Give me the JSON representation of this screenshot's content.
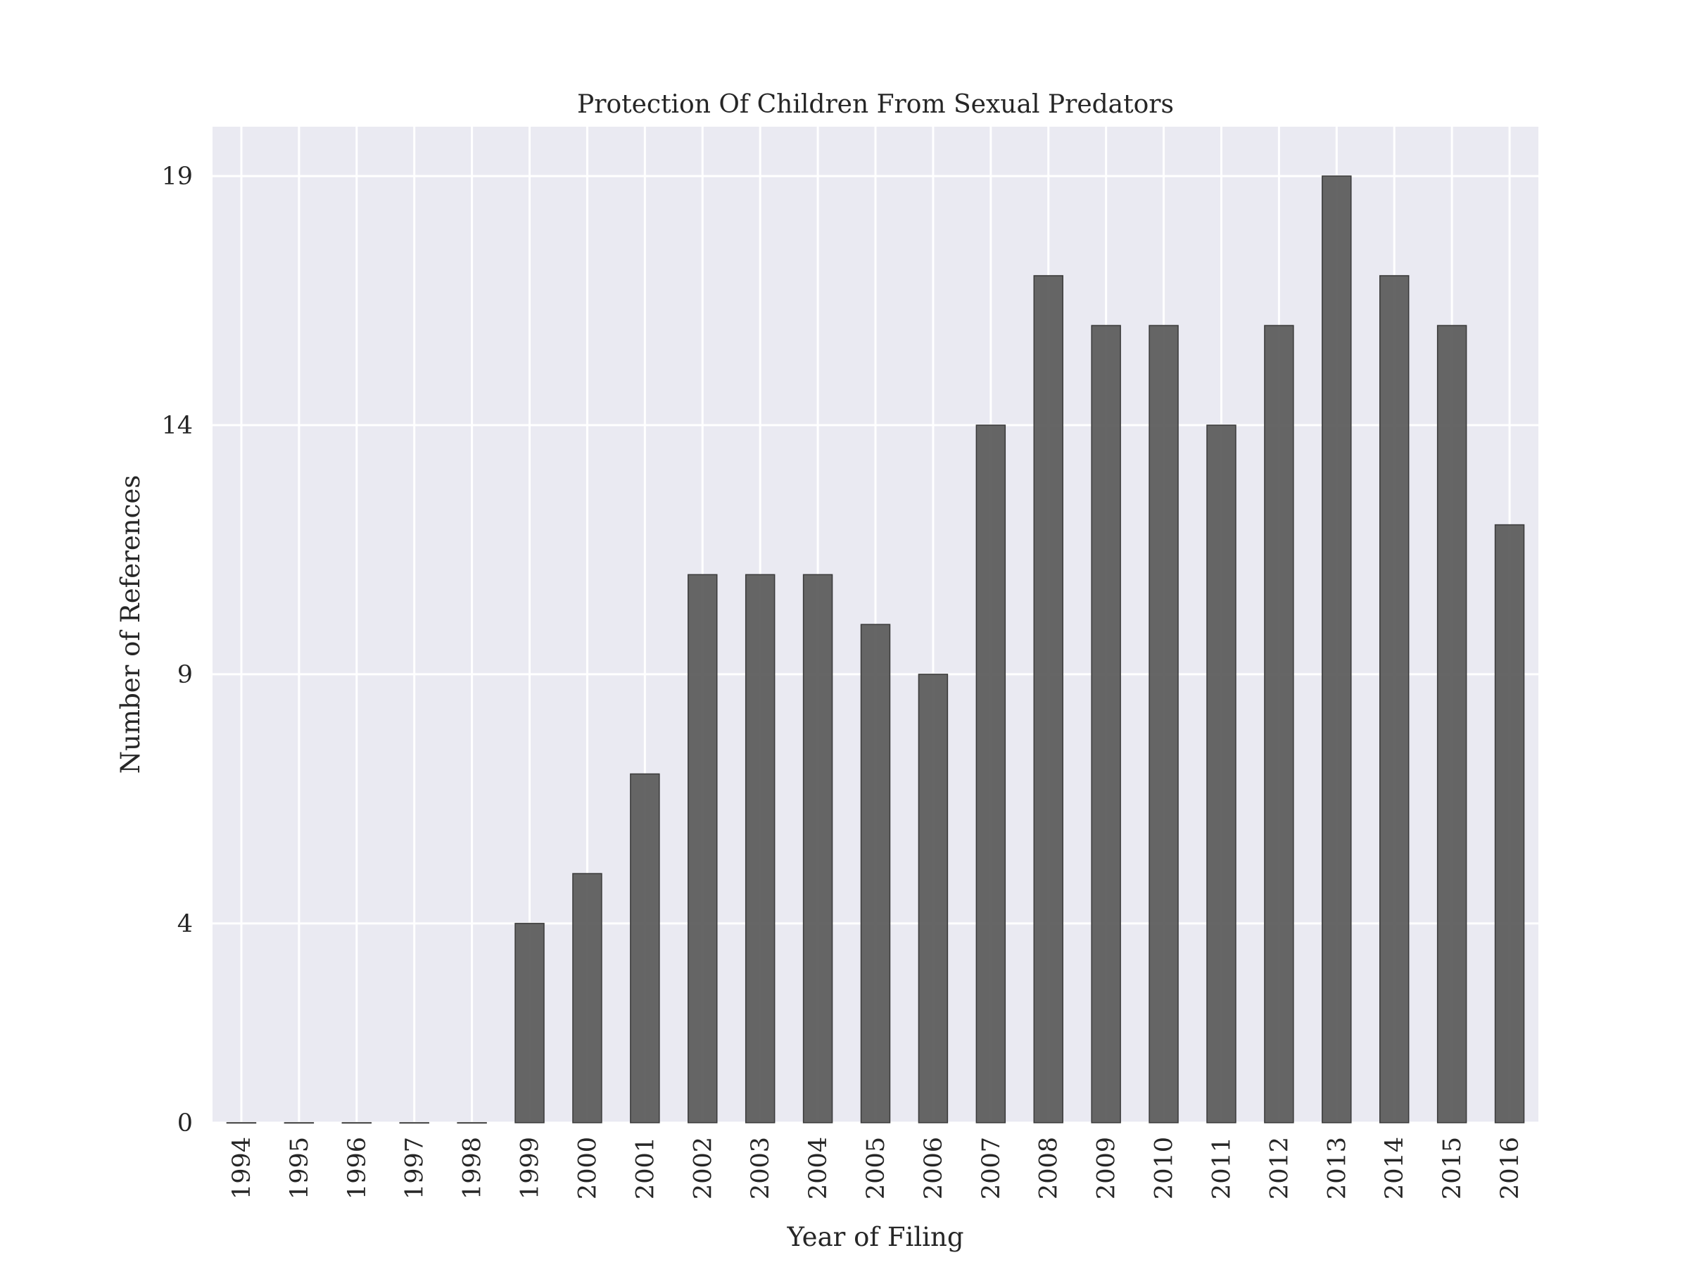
{
  "chart_data": {
    "type": "bar",
    "title": "Protection Of Children From Sexual Predators",
    "xlabel": "Year of Filing",
    "ylabel": "Number of References",
    "categories": [
      "1994",
      "1995",
      "1996",
      "1997",
      "1998",
      "1999",
      "2000",
      "2001",
      "2002",
      "2003",
      "2004",
      "2005",
      "2006",
      "2007",
      "2008",
      "2009",
      "2010",
      "2011",
      "2012",
      "2013",
      "2014",
      "2015",
      "2016"
    ],
    "values": [
      0,
      0,
      0,
      0,
      0,
      4,
      5,
      7,
      11,
      11,
      11,
      10,
      9,
      14,
      17,
      16,
      16,
      14,
      16,
      19,
      17,
      16,
      12
    ],
    "yticks": [
      0,
      4,
      9,
      14,
      19
    ],
    "ylim": [
      0,
      19.99
    ],
    "grid": true,
    "colors": {
      "background": "#eaeaf2",
      "grid": "#ffffff",
      "bar_fill": "#595959",
      "bar_stroke": "#3a3a3a"
    }
  }
}
